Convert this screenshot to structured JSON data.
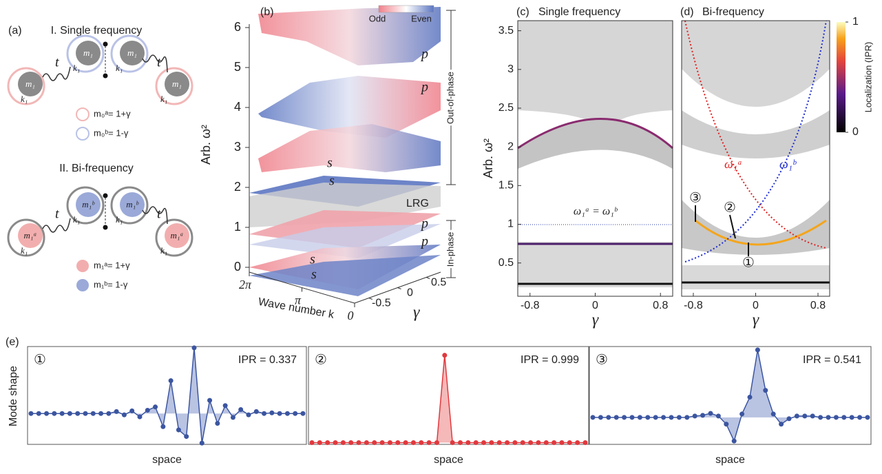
{
  "panel_a": {
    "label": "(a)",
    "single_title": "I. Single frequency",
    "bi_title": "II. Bi-frequency",
    "coupling": "t",
    "spring": "k₁",
    "mass_single": "m₁",
    "mass_bi_a": "m₁ᵃ",
    "mass_bi_b": "m₁ᵇ",
    "legend_single": [
      "m₀ᵃ= 1+γ",
      "m₀ᵇ= 1-γ"
    ],
    "legend_bi": [
      "m₁ᵃ= 1+γ",
      "m₁ᵇ= 1-γ"
    ]
  },
  "panel_b": {
    "label": "(b)",
    "ylabel": "Arb. ω²",
    "xlabel": "Wave number k",
    "zlabel": "γ",
    "legend": [
      "Odd",
      "Even"
    ],
    "yticks": [
      0,
      1,
      2,
      3,
      4,
      5,
      6
    ],
    "kticks": [
      {
        "value": 6.2832,
        "label": "2π"
      },
      {
        "value": 3.1416,
        "label": "π"
      },
      0
    ],
    "gticks": [
      -0.5,
      0,
      0.5
    ],
    "band_labels": [
      "p",
      "p",
      "s",
      "s",
      "p",
      "p",
      "s",
      "s"
    ],
    "gap_label": "LRG",
    "out_phase": "Out-of-phase",
    "in_phase": "In-phase"
  },
  "chart_data": [
    {
      "type": "band",
      "panel_label": "(c)",
      "title": "Single frequency",
      "xlabel": "γ",
      "ylabel": "Arb. ω²",
      "xlim": [
        -0.95,
        0.95
      ],
      "ylim": [
        0.07,
        3.63
      ],
      "xticks": [
        -0.8,
        0,
        0.8
      ],
      "yticks": [
        0.5,
        1,
        1.5,
        2,
        2.5,
        3,
        3.5
      ],
      "annotation": "ω₁ᵃ = ω₁ᵇ"
    },
    {
      "type": "band",
      "panel_label": "(d)",
      "title": "Bi-frequency",
      "xlabel": "γ",
      "xlim": [
        -0.95,
        0.95
      ],
      "ylim": [
        0.07,
        3.63
      ],
      "xticks": [
        -0.8,
        0,
        0.8
      ],
      "annotations": [
        "ω₁ᵃ",
        "ω₁ᵇ"
      ],
      "markers": [
        "③",
        "②",
        "①"
      ],
      "colorbar": {
        "label": "Localization (IPR)",
        "ticks": [
          0,
          1
        ]
      }
    },
    {
      "type": "mode",
      "panel_label": "(e)",
      "ylabel": "Mode shape",
      "marker": "①",
      "annotation": "IPR = 0.337",
      "xlabel": "space",
      "color": "#3b55a0",
      "fill": "#b9c3e2",
      "ylim": [
        -0.47,
        1.02
      ],
      "values": [
        0,
        0,
        0,
        0,
        0,
        0,
        0,
        0,
        0,
        0,
        0,
        0.03,
        -0.02,
        0.04,
        -0.05,
        0.05,
        0.1,
        -0.2,
        0.5,
        -0.25,
        -0.35,
        1.0,
        -0.45,
        0.2,
        -0.15,
        0.12,
        -0.06,
        0.06,
        -0.02,
        0.03,
        0,
        0.01,
        0,
        0,
        0,
        0
      ]
    },
    {
      "type": "mode",
      "marker": "②",
      "annotation": "IPR = 0.999",
      "xlabel": "space",
      "color": "#e0393e",
      "fill": "#f5b9b9",
      "ylim": [
        -0.02,
        1.1
      ],
      "values": [
        0,
        0,
        0,
        0,
        0,
        0,
        0,
        0,
        0,
        0,
        0,
        0,
        0,
        0,
        0,
        0,
        0,
        1,
        0,
        0,
        0,
        0,
        0,
        0,
        0,
        0,
        0,
        0,
        0,
        0,
        0,
        0,
        0,
        0,
        0,
        0
      ]
    },
    {
      "type": "mode",
      "marker": "③",
      "annotation": "IPR = 0.541",
      "xlabel": "space",
      "color": "#3b55a0",
      "fill": "#b9c3e2",
      "ylim": [
        -0.4,
        1.05
      ],
      "values": [
        0,
        0,
        0,
        0,
        0,
        0,
        0,
        0,
        0,
        0,
        0,
        0,
        0,
        0.02,
        0.03,
        0.06,
        0.02,
        -0.1,
        -0.35,
        0.05,
        0.3,
        1.0,
        0.4,
        0.05,
        -0.1,
        -0.02,
        0.02,
        0.02,
        0.02,
        0,
        0,
        0,
        0,
        0,
        0,
        0
      ]
    }
  ]
}
